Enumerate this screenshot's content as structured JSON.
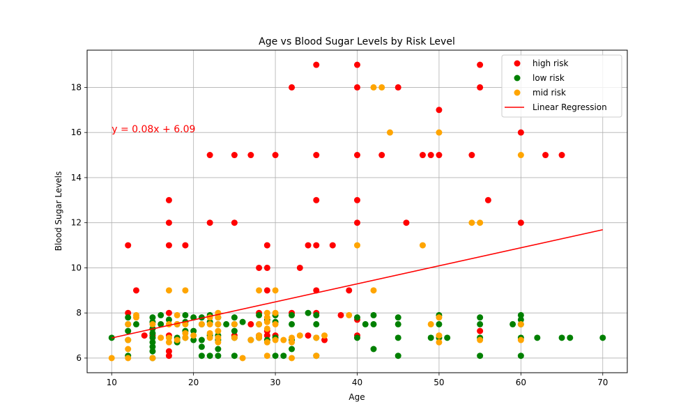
{
  "chart_data": {
    "type": "scatter",
    "title": "Age vs Blood Sugar Levels by Risk Level",
    "xlabel": "Age",
    "ylabel": "Blood Sugar Levels",
    "xlim": [
      7,
      73
    ],
    "ylim": [
      5.35,
      19.65
    ],
    "xticks": [
      10,
      20,
      30,
      40,
      50,
      60,
      70
    ],
    "yticks": [
      6,
      8,
      10,
      12,
      14,
      16,
      18
    ],
    "grid": true,
    "legend_position": "top-right",
    "annotation": {
      "text": "y = 0.08x + 6.09",
      "x": 10,
      "y": 16,
      "color": "#ff0000"
    },
    "regression": {
      "name": "Linear Regression",
      "color": "#ff0000",
      "slope": 0.08,
      "intercept": 6.09,
      "x_range": [
        10,
        70
      ]
    },
    "series": [
      {
        "name": "high risk",
        "color": "#ff0000",
        "points": [
          [
            12,
            11
          ],
          [
            12,
            8
          ],
          [
            13,
            9
          ],
          [
            14,
            7
          ],
          [
            15,
            7
          ],
          [
            17,
            13
          ],
          [
            17,
            12
          ],
          [
            17,
            11
          ],
          [
            17,
            8
          ],
          [
            17,
            7
          ],
          [
            17,
            6.3
          ],
          [
            17,
            6.1
          ],
          [
            19,
            11
          ],
          [
            22,
            15
          ],
          [
            22,
            12
          ],
          [
            25,
            15
          ],
          [
            25,
            12
          ],
          [
            25,
            7
          ],
          [
            27,
            15
          ],
          [
            27,
            7.5
          ],
          [
            28,
            10
          ],
          [
            28,
            8
          ],
          [
            28,
            7
          ],
          [
            29,
            11
          ],
          [
            29,
            10
          ],
          [
            29,
            9
          ],
          [
            29,
            7.2
          ],
          [
            29,
            7
          ],
          [
            30,
            15
          ],
          [
            30,
            7
          ],
          [
            32,
            18
          ],
          [
            32,
            8
          ],
          [
            33,
            10
          ],
          [
            34,
            11
          ],
          [
            34,
            7
          ],
          [
            35,
            19
          ],
          [
            35,
            15
          ],
          [
            35,
            13
          ],
          [
            35,
            11
          ],
          [
            35,
            9
          ],
          [
            35,
            8
          ],
          [
            36,
            6.8
          ],
          [
            37,
            11
          ],
          [
            38,
            7.9
          ],
          [
            39,
            9
          ],
          [
            40,
            19
          ],
          [
            40,
            18
          ],
          [
            40,
            15
          ],
          [
            40,
            13
          ],
          [
            40,
            12
          ],
          [
            40,
            7.7
          ],
          [
            40,
            7
          ],
          [
            43,
            15
          ],
          [
            45,
            18
          ],
          [
            46,
            12
          ],
          [
            48,
            15
          ],
          [
            49,
            15
          ],
          [
            50,
            17
          ],
          [
            50,
            15
          ],
          [
            54,
            15
          ],
          [
            55,
            19
          ],
          [
            55,
            18
          ],
          [
            55,
            7.2
          ],
          [
            56,
            13
          ],
          [
            60,
            16
          ],
          [
            60,
            12
          ],
          [
            63,
            15
          ],
          [
            65,
            15
          ]
        ]
      },
      {
        "name": "low risk",
        "color": "#008000",
        "points": [
          [
            10,
            6.9
          ],
          [
            12,
            7.8
          ],
          [
            12,
            7.5
          ],
          [
            12,
            7.2
          ],
          [
            12,
            6.8
          ],
          [
            12,
            6.1
          ],
          [
            13,
            7.5
          ],
          [
            15,
            7.8
          ],
          [
            15,
            7.6
          ],
          [
            15,
            7.3
          ],
          [
            15,
            7.1
          ],
          [
            15,
            6.9
          ],
          [
            15,
            6.7
          ],
          [
            15,
            6.5
          ],
          [
            15,
            6.3
          ],
          [
            15,
            6
          ],
          [
            16,
            7.9
          ],
          [
            16,
            7.5
          ],
          [
            17,
            7.7
          ],
          [
            18,
            7.5
          ],
          [
            18,
            6.9
          ],
          [
            18,
            6.7
          ],
          [
            19,
            7.9
          ],
          [
            19,
            7.6
          ],
          [
            19,
            7.2
          ],
          [
            19,
            6.9
          ],
          [
            20,
            7.8
          ],
          [
            20,
            7.2
          ],
          [
            20,
            6.8
          ],
          [
            21,
            7.8
          ],
          [
            21,
            7.5
          ],
          [
            21,
            6.8
          ],
          [
            21,
            6.5
          ],
          [
            21,
            6.1
          ],
          [
            22,
            7.9
          ],
          [
            22,
            7.6
          ],
          [
            22,
            7
          ],
          [
            22,
            6.1
          ],
          [
            23,
            7.8
          ],
          [
            23,
            7.5
          ],
          [
            23,
            7
          ],
          [
            23,
            6.8
          ],
          [
            23,
            6.4
          ],
          [
            23,
            6.1
          ],
          [
            24,
            7.5
          ],
          [
            25,
            7.8
          ],
          [
            25,
            7.5
          ],
          [
            25,
            7.2
          ],
          [
            25,
            6.9
          ],
          [
            25,
            6.1
          ],
          [
            26,
            7.6
          ],
          [
            27,
            6.8
          ],
          [
            28,
            7.9
          ],
          [
            28,
            7.5
          ],
          [
            28,
            6.9
          ],
          [
            29,
            7.7
          ],
          [
            29,
            6.8
          ],
          [
            30,
            7.9
          ],
          [
            30,
            7.6
          ],
          [
            30,
            6.9
          ],
          [
            30,
            6.1
          ],
          [
            31,
            6.1
          ],
          [
            32,
            7.9
          ],
          [
            32,
            7.5
          ],
          [
            32,
            6.8
          ],
          [
            32,
            6.4
          ],
          [
            34,
            8
          ],
          [
            35,
            7.9
          ],
          [
            35,
            7.5
          ],
          [
            35,
            6.9
          ],
          [
            35,
            6.1
          ],
          [
            40,
            7.8
          ],
          [
            40,
            6.9
          ],
          [
            41,
            7.5
          ],
          [
            42,
            7.9
          ],
          [
            42,
            7.5
          ],
          [
            42,
            6.4
          ],
          [
            45,
            7.8
          ],
          [
            45,
            7.5
          ],
          [
            45,
            6.9
          ],
          [
            45,
            6.1
          ],
          [
            49,
            6.9
          ],
          [
            50,
            7.9
          ],
          [
            50,
            7.5
          ],
          [
            50,
            6.9
          ],
          [
            51,
            6.9
          ],
          [
            55,
            7.8
          ],
          [
            55,
            7.5
          ],
          [
            55,
            6.9
          ],
          [
            55,
            6.1
          ],
          [
            59,
            7.5
          ],
          [
            60,
            7.9
          ],
          [
            60,
            7.7
          ],
          [
            60,
            7.5
          ],
          [
            60,
            6.9
          ],
          [
            60,
            6.1
          ],
          [
            62,
            6.9
          ],
          [
            65,
            6.9
          ],
          [
            66,
            6.9
          ],
          [
            70,
            6.9
          ]
        ]
      },
      {
        "name": "mid risk",
        "color": "#ffa500",
        "points": [
          [
            10,
            6
          ],
          [
            12,
            7.5
          ],
          [
            12,
            6.8
          ],
          [
            12,
            6.4
          ],
          [
            12,
            6
          ],
          [
            13,
            7.9
          ],
          [
            13,
            7.8
          ],
          [
            15,
            7.5
          ],
          [
            15,
            6
          ],
          [
            16,
            6.9
          ],
          [
            17,
            9
          ],
          [
            17,
            7.5
          ],
          [
            17,
            6.9
          ],
          [
            17,
            6.7
          ],
          [
            18,
            7.9
          ],
          [
            18,
            7.5
          ],
          [
            18,
            6.8
          ],
          [
            19,
            9
          ],
          [
            19,
            7.5
          ],
          [
            19,
            7.1
          ],
          [
            19,
            6.9
          ],
          [
            20,
            7
          ],
          [
            21,
            7.5
          ],
          [
            22,
            7.8
          ],
          [
            22,
            7.5
          ],
          [
            22,
            7.1
          ],
          [
            22,
            6.9
          ],
          [
            23,
            8
          ],
          [
            23,
            7.8
          ],
          [
            23,
            7.5
          ],
          [
            23,
            7.2
          ],
          [
            23,
            6.9
          ],
          [
            23,
            6.7
          ],
          [
            25,
            7.5
          ],
          [
            25,
            6.9
          ],
          [
            26,
            6
          ],
          [
            27,
            6.8
          ],
          [
            28,
            9
          ],
          [
            28,
            7.5
          ],
          [
            28,
            7
          ],
          [
            28,
            6.9
          ],
          [
            29,
            8
          ],
          [
            29,
            7.8
          ],
          [
            29,
            7.6
          ],
          [
            29,
            7.3
          ],
          [
            29,
            6.7
          ],
          [
            29,
            6.1
          ],
          [
            30,
            9
          ],
          [
            30,
            8
          ],
          [
            30,
            7.5
          ],
          [
            30,
            6.8
          ],
          [
            31,
            6.8
          ],
          [
            32,
            6.9
          ],
          [
            32,
            6.7
          ],
          [
            32,
            6
          ],
          [
            33,
            7
          ],
          [
            35,
            6.9
          ],
          [
            35,
            6.1
          ],
          [
            36,
            7
          ],
          [
            39,
            7.9
          ],
          [
            40,
            11
          ],
          [
            42,
            18
          ],
          [
            42,
            9
          ],
          [
            43,
            18
          ],
          [
            44,
            16
          ],
          [
            48,
            11
          ],
          [
            49,
            7.5
          ],
          [
            50,
            16
          ],
          [
            50,
            7.8
          ],
          [
            50,
            7
          ],
          [
            50,
            6.7
          ],
          [
            54,
            12
          ],
          [
            55,
            12
          ],
          [
            55,
            6.8
          ],
          [
            60,
            15
          ],
          [
            60,
            7.5
          ],
          [
            60,
            6.8
          ]
        ]
      }
    ]
  }
}
